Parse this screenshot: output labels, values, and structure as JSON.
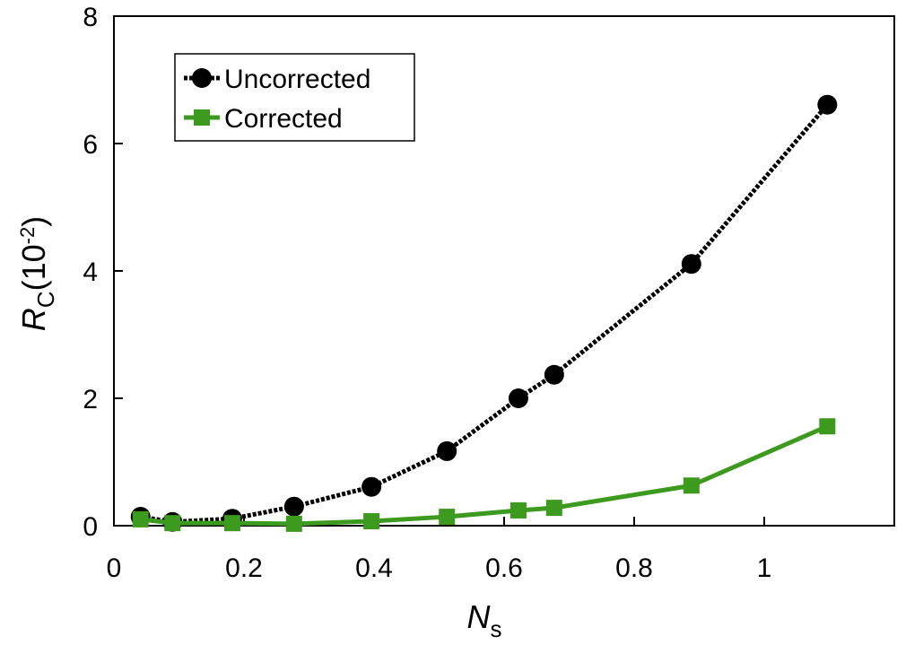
{
  "chart_data": {
    "type": "line",
    "xlabel_parts": [
      "N",
      "s"
    ],
    "ylabel_parts": [
      "R",
      "C",
      "(10",
      "-2",
      ")"
    ],
    "x": [
      0.041,
      0.09,
      0.182,
      0.277,
      0.396,
      0.512,
      0.622,
      0.677,
      0.888,
      1.097
    ],
    "series": [
      {
        "name": "Uncorrected",
        "color": "#000000",
        "marker": "circle",
        "dashed": true,
        "values": [
          0.14,
          0.06,
          0.11,
          0.3,
          0.61,
          1.17,
          2.0,
          2.37,
          4.11,
          6.61
        ]
      },
      {
        "name": "Corrected",
        "color": "#3c9a1e",
        "marker": "square",
        "dashed": false,
        "values": [
          0.1,
          0.04,
          0.04,
          0.03,
          0.07,
          0.14,
          0.24,
          0.28,
          0.63,
          1.56
        ]
      }
    ],
    "xlim": [
      0,
      1.2
    ],
    "xticks": [
      0,
      0.2,
      0.4,
      0.6,
      0.8,
      1
    ],
    "ylim": [
      0,
      8
    ],
    "yticks": [
      0,
      2,
      4,
      6,
      8
    ],
    "legend": "upper left"
  }
}
